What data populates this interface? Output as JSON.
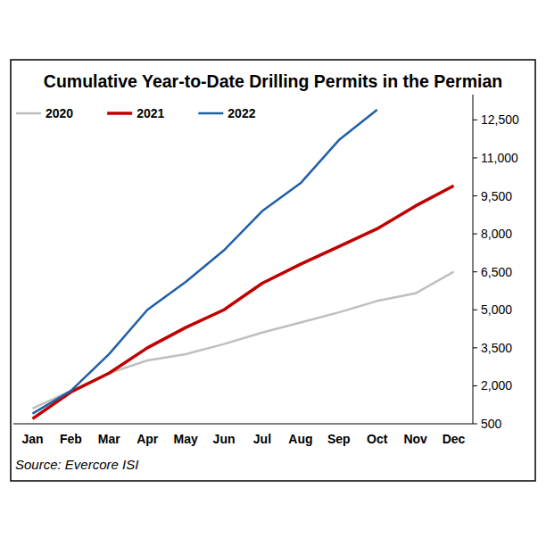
{
  "chart_data": {
    "type": "line",
    "title": "Cumulative Year-to-Date Drilling Permits in the Permian",
    "source": "Source: Evercore ISI",
    "categories": [
      "Jan",
      "Feb",
      "Mar",
      "Apr",
      "May",
      "Jun",
      "Jul",
      "Aug",
      "Sep",
      "Oct",
      "Nov",
      "Dec"
    ],
    "series": [
      {
        "name": "2020",
        "color": "#bfbfbf",
        "values": [
          1100,
          1800,
          2500,
          3000,
          3250,
          3650,
          4100,
          4500,
          4900,
          5350,
          5650,
          6500
        ]
      },
      {
        "name": "2021",
        "color": "#c00000",
        "values": [
          700,
          1750,
          2500,
          3500,
          4300,
          5000,
          6050,
          6800,
          7500,
          8200,
          9100,
          9900
        ]
      },
      {
        "name": "2022",
        "color": "#1f5fa8",
        "values": [
          900,
          1800,
          3250,
          5000,
          6100,
          7350,
          8900,
          10000,
          11700,
          12900,
          null,
          null
        ]
      }
    ],
    "ylim": [
      500,
      13500
    ],
    "yticks": [
      500,
      {
        "value": 2000,
        "label": "2,000"
      },
      {
        "value": 3500,
        "label": "3,500"
      },
      {
        "value": 5000,
        "label": "5,000"
      },
      {
        "value": 6500,
        "label": "6,500"
      },
      {
        "value": 8000,
        "label": "8,000"
      },
      {
        "value": 9500,
        "label": "9,500"
      },
      {
        "value": 11000,
        "label": "11,000"
      },
      {
        "value": 12500,
        "label": "12,500"
      }
    ],
    "grid": false,
    "legend": "top-left"
  }
}
